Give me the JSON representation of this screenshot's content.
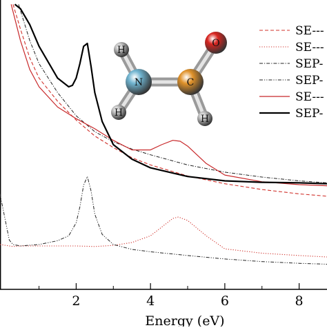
{
  "chart_data": {
    "type": "line",
    "title": "",
    "xlabel": "Energy (eV)",
    "ylabel": "",
    "xlim": [
      -0.05,
      8.75
    ],
    "ylim": [
      0,
      10
    ],
    "x_ticks": [
      2,
      4,
      6,
      8
    ],
    "x_tick_labels": [
      "2",
      "4",
      "6",
      "8"
    ],
    "grid": false,
    "legend": {
      "position": "top-right",
      "entries": [
        "SE---",
        "SE---",
        "SEP-",
        "SEP-",
        "SE---",
        "SEP-"
      ]
    },
    "series": [
      {
        "style": "dashed",
        "color": "#d0302a",
        "width": 1.1,
        "x": [
          0.3,
          0.5,
          0.75,
          1.0,
          1.5,
          2.0,
          2.5,
          3.0,
          3.5,
          4.0,
          5.0,
          6.0,
          7.0,
          8.0,
          8.75
        ],
        "y": [
          9.85,
          9.0,
          8.0,
          7.3,
          6.5,
          5.85,
          5.3,
          4.9,
          4.55,
          4.3,
          3.92,
          3.65,
          3.45,
          3.3,
          3.22
        ]
      },
      {
        "style": "dotted",
        "color": "#d0302a",
        "width": 1.1,
        "x": [
          -0.05,
          0.3,
          0.5,
          1.0,
          2.0,
          2.5,
          3.0,
          3.5,
          4.0,
          4.3,
          4.6,
          4.75,
          5.0,
          5.5,
          6.0,
          7.0,
          8.0,
          8.75
        ],
        "y": [
          1.55,
          1.48,
          1.5,
          1.5,
          1.5,
          1.48,
          1.52,
          1.62,
          1.85,
          2.15,
          2.45,
          2.5,
          2.38,
          1.85,
          1.4,
          1.25,
          1.17,
          1.12
        ]
      },
      {
        "style": "dashdot",
        "color": "#222222",
        "width": 1.0,
        "x": [
          0.45,
          0.75,
          1.0,
          1.5,
          2.0,
          2.5,
          3.0,
          3.5,
          4.0,
          5.0,
          6.0,
          7.0,
          8.0,
          8.75
        ],
        "y": [
          9.85,
          8.6,
          7.8,
          6.8,
          6.0,
          5.45,
          5.1,
          4.85,
          4.65,
          4.3,
          4.05,
          3.88,
          3.75,
          3.68
        ]
      },
      {
        "style": "dashdotdot",
        "color": "#222222",
        "width": 1.0,
        "x": [
          -0.05,
          0.2,
          0.3,
          0.5,
          1.0,
          1.5,
          1.8,
          2.0,
          2.1,
          2.2,
          2.3,
          2.4,
          2.5,
          2.7,
          3.0,
          3.5,
          4.0,
          5.0,
          6.0,
          7.0,
          8.0,
          8.75
        ],
        "y": [
          3.3,
          1.7,
          1.55,
          1.5,
          1.55,
          1.68,
          1.85,
          2.3,
          2.85,
          3.6,
          3.9,
          3.4,
          2.6,
          1.9,
          1.55,
          1.38,
          1.3,
          1.17,
          1.05,
          0.96,
          0.9,
          0.87
        ]
      },
      {
        "style": "solid",
        "color": "#c8282a",
        "width": 1.2,
        "x": [
          0.25,
          0.5,
          0.75,
          1.0,
          1.5,
          2.0,
          2.5,
          3.0,
          3.5,
          4.0,
          4.3,
          4.6,
          4.8,
          5.0,
          5.5,
          6.0,
          7.0,
          8.0,
          8.75
        ],
        "y": [
          9.85,
          8.6,
          7.6,
          7.0,
          6.3,
          5.9,
          5.55,
          5.15,
          4.82,
          4.82,
          5.0,
          5.15,
          5.12,
          4.95,
          4.35,
          3.95,
          3.72,
          3.62,
          3.58
        ]
      },
      {
        "style": "solid",
        "color": "#000000",
        "width": 2.2,
        "x": [
          0.35,
          0.5,
          0.75,
          1.0,
          1.5,
          1.8,
          1.9,
          2.0,
          2.1,
          2.2,
          2.3,
          2.4,
          2.5,
          2.7,
          3.0,
          3.5,
          4.0,
          5.0,
          6.0,
          7.0,
          8.0,
          8.75
        ],
        "y": [
          9.85,
          9.7,
          9.15,
          8.4,
          7.3,
          7.0,
          7.05,
          7.3,
          7.8,
          8.4,
          8.5,
          7.7,
          6.8,
          5.8,
          5.0,
          4.5,
          4.2,
          3.9,
          3.75,
          3.7,
          3.68,
          3.65
        ]
      }
    ],
    "inset_molecule": {
      "atoms": [
        {
          "label": "H",
          "color": "#bdbdbd"
        },
        {
          "label": "H",
          "color": "#bdbdbd"
        },
        {
          "label": "N",
          "color": "#6fb3cf"
        },
        {
          "label": "C",
          "color": "#e0922a"
        },
        {
          "label": "O",
          "color": "#d8241f"
        },
        {
          "label": "H",
          "color": "#bdbdbd"
        }
      ]
    }
  }
}
